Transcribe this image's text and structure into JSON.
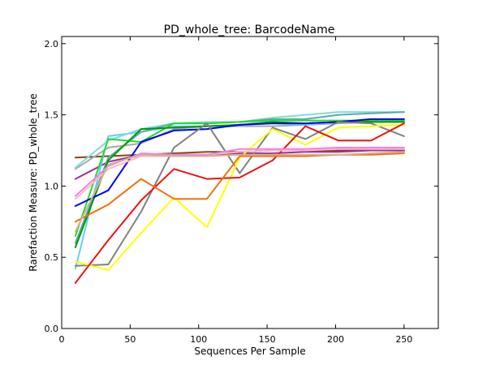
{
  "chart_data": {
    "type": "line",
    "title": "PD_whole_tree: BarcodeName",
    "xlabel": "Sequences Per Sample",
    "ylabel": "Rarefaction Measure: PD_whole_tree",
    "xlim": [
      0,
      275
    ],
    "ylim": [
      0.0,
      2.05
    ],
    "xticks": [
      0,
      50,
      100,
      150,
      200,
      250
    ],
    "xtick_labels": [
      "0",
      "50",
      "100",
      "150",
      "200",
      "250"
    ],
    "yticks": [
      0.0,
      0.5,
      1.0,
      1.5,
      2.0
    ],
    "ytick_labels": [
      "0.0",
      "0.5",
      "1.0",
      "1.5",
      "2.0"
    ],
    "grid": false,
    "x": [
      10,
      34,
      58,
      82,
      106,
      130,
      154,
      178,
      202,
      226,
      250
    ],
    "series": [
      {
        "color": "#8b4513",
        "values": [
          1.2,
          1.21,
          1.22,
          1.23,
          1.24,
          1.24,
          1.25,
          1.25,
          1.25,
          1.26,
          1.25
        ]
      },
      {
        "color": "#9b30a0",
        "values": [
          1.05,
          1.17,
          1.22,
          1.22,
          1.22,
          1.23,
          1.23,
          1.24,
          1.24,
          1.25,
          1.25
        ]
      },
      {
        "color": "#a9a9a9",
        "values": [
          1.12,
          1.27,
          1.3,
          1.4,
          1.42,
          1.42,
          1.42,
          1.43,
          1.44,
          1.45,
          1.46
        ]
      },
      {
        "color": "#66ccff",
        "values": [
          0.42,
          1.35,
          1.38,
          1.42,
          1.42,
          1.43,
          1.44,
          1.43,
          1.45,
          1.46,
          1.47
        ]
      },
      {
        "color": "#7ddde0",
        "values": [
          1.13,
          1.32,
          1.4,
          1.44,
          1.45,
          1.45,
          1.48,
          1.5,
          1.52,
          1.52,
          1.52
        ]
      },
      {
        "color": "#5fa8a8",
        "values": [
          0.6,
          1.2,
          1.38,
          1.44,
          1.44,
          1.45,
          1.47,
          1.47,
          1.5,
          1.51,
          1.52
        ]
      },
      {
        "color": "#22dd22",
        "values": [
          0.65,
          1.33,
          1.31,
          1.44,
          1.44,
          1.45,
          1.46,
          1.46,
          1.46,
          1.46,
          1.46
        ]
      },
      {
        "color": "#009900",
        "values": [
          0.57,
          1.18,
          1.4,
          1.41,
          1.42,
          1.43,
          1.45,
          1.44,
          1.45,
          1.45,
          1.45
        ]
      },
      {
        "color": "#0000ee",
        "values": [
          0.86,
          0.97,
          1.31,
          1.39,
          1.4,
          1.43,
          1.44,
          1.44,
          1.45,
          1.47,
          1.47
        ]
      },
      {
        "color": "#808080",
        "values": [
          0.44,
          0.45,
          0.82,
          1.27,
          1.44,
          1.09,
          1.41,
          1.33,
          1.45,
          1.44,
          1.35
        ]
      },
      {
        "color": "#ffff00",
        "values": [
          0.47,
          0.41,
          0.67,
          0.92,
          0.71,
          1.2,
          1.4,
          1.29,
          1.41,
          1.42,
          1.43
        ]
      },
      {
        "color": "#ee1111",
        "values": [
          0.32,
          0.62,
          0.9,
          1.12,
          1.05,
          1.06,
          1.18,
          1.42,
          1.32,
          1.32,
          1.44
        ]
      },
      {
        "color": "#f07010",
        "values": [
          0.75,
          0.87,
          1.05,
          0.91,
          0.91,
          1.21,
          1.21,
          1.21,
          1.22,
          1.22,
          1.23
        ]
      },
      {
        "color": "#ffb6c1",
        "values": [
          0.91,
          1.12,
          1.21,
          1.21,
          1.22,
          1.24,
          1.25,
          1.25,
          1.26,
          1.26,
          1.26
        ]
      },
      {
        "color": "#ee82ee",
        "values": [
          0.93,
          1.14,
          1.23,
          1.22,
          1.22,
          1.26,
          1.26,
          1.26,
          1.27,
          1.27,
          1.27
        ]
      },
      {
        "color": "#d2b48c",
        "values": [
          0.68,
          1.15,
          1.22,
          1.21,
          1.21,
          1.22,
          1.22,
          1.22,
          1.22,
          1.23,
          1.24
        ]
      }
    ]
  }
}
